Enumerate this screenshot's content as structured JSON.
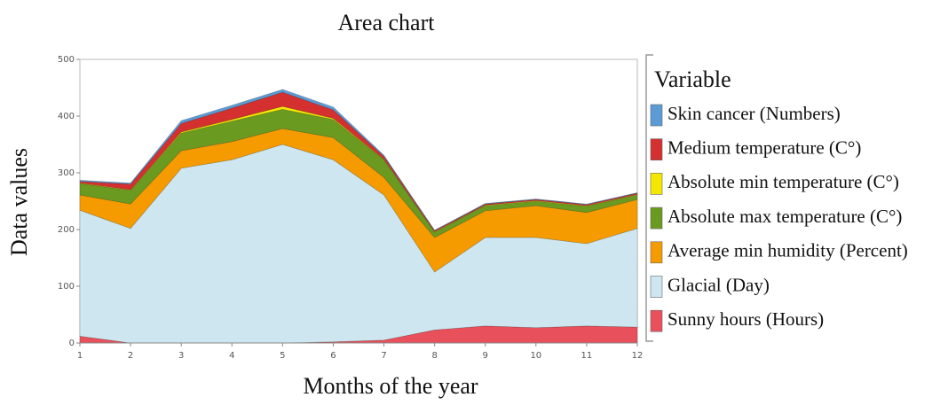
{
  "chart_data": {
    "type": "stacked-area",
    "title": "Area chart",
    "xlabel": "Months of the year",
    "ylabel": "Data values",
    "legend_title": "Variable",
    "legend": "right",
    "x": [
      1,
      2,
      3,
      4,
      5,
      6,
      7,
      8,
      9,
      10,
      11,
      12
    ],
    "xlim": [
      1,
      12
    ],
    "xticks": [
      1,
      2,
      3,
      4,
      5,
      6,
      7,
      8,
      9,
      10,
      11,
      12
    ],
    "ylim": [
      0,
      500
    ],
    "yticks": [
      0,
      100,
      200,
      300,
      400,
      500
    ],
    "series": [
      {
        "name": "Sunny hours (Hours)",
        "color": "#e8505b",
        "values": [
          12,
          0,
          0,
          0,
          0,
          2,
          5,
          23,
          30,
          27,
          30,
          28
        ]
      },
      {
        "name": "Glacial (Day)",
        "color": "#cde6f0",
        "values": [
          222,
          202,
          308,
          323,
          350,
          321,
          256,
          102,
          156,
          159,
          145,
          174
        ]
      },
      {
        "name": "Average min humidity (Percent)",
        "color": "#f59b00",
        "values": [
          27,
          43,
          31,
          32,
          28,
          39,
          31,
          61,
          47,
          56,
          55,
          51
        ]
      },
      {
        "name": "Absolute max temperature (C°)",
        "color": "#6a9a20",
        "values": [
          20,
          24,
          31,
          36,
          34,
          32,
          31,
          9,
          9,
          8,
          11,
          8
        ]
      },
      {
        "name": "Absolute min temperature (C°)",
        "color": "#f5e800",
        "values": [
          1,
          1,
          2,
          3,
          5,
          2,
          1,
          1,
          1,
          1,
          1,
          1
        ]
      },
      {
        "name": "Medium temperature (C°)",
        "color": "#d43030",
        "values": [
          3,
          10,
          15,
          20,
          25,
          15,
          5,
          2,
          2,
          2,
          2,
          2
        ]
      },
      {
        "name": "Skin cancer (Numbers)",
        "color": "#5b9bd5",
        "values": [
          2,
          2,
          5,
          5,
          5,
          5,
          2,
          1,
          1,
          1,
          1,
          1
        ]
      }
    ]
  }
}
